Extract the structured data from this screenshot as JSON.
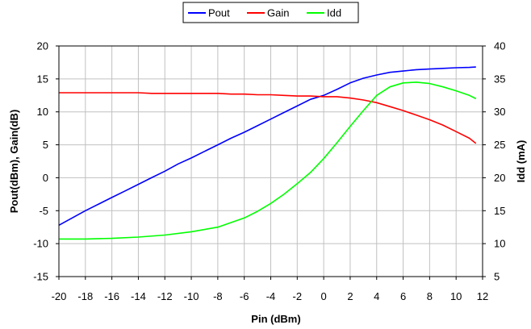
{
  "chart_data": {
    "type": "line",
    "title": "",
    "xlabel": "Pin (dBm)",
    "ylabel": "Pout(dBm), Gain(dB)",
    "y2label": "Idd (mA)",
    "xlim": [
      -20,
      12
    ],
    "ylim": [
      -15,
      20
    ],
    "y2lim": [
      5,
      40
    ],
    "xticks": [
      -20,
      -18,
      -16,
      -14,
      -12,
      -10,
      -8,
      -6,
      -4,
      -2,
      0,
      2,
      4,
      6,
      8,
      10,
      12
    ],
    "yticks": [
      -15,
      -10,
      -5,
      0,
      5,
      10,
      15,
      20
    ],
    "y2ticks": [
      5,
      10,
      15,
      20,
      25,
      30,
      35,
      40
    ],
    "grid": true,
    "legend_position": "top-center",
    "series": [
      {
        "name": "Pout",
        "axis": "left",
        "color": "#0000ff",
        "x": [
          -20,
          -19,
          -18,
          -17,
          -16,
          -15,
          -14,
          -13,
          -12,
          -11,
          -10,
          -9,
          -8,
          -7,
          -6,
          -5,
          -4,
          -3,
          -2,
          -1,
          0,
          1,
          2,
          3,
          4,
          5,
          6,
          7,
          8,
          9,
          10,
          11,
          11.5
        ],
        "y": [
          -7.2,
          -6.1,
          -5.0,
          -4.0,
          -3.0,
          -2.0,
          -1.0,
          0.0,
          1.0,
          2.1,
          3.0,
          4.0,
          5.0,
          6.0,
          6.9,
          7.9,
          8.9,
          9.9,
          10.9,
          11.9,
          12.5,
          13.4,
          14.4,
          15.1,
          15.6,
          16.0,
          16.2,
          16.4,
          16.5,
          16.6,
          16.7,
          16.75,
          16.8
        ]
      },
      {
        "name": "Gain",
        "axis": "left",
        "color": "#ff0000",
        "x": [
          -20,
          -18,
          -16,
          -14,
          -13,
          -12,
          -10,
          -8,
          -7,
          -6,
          -5,
          -4,
          -3,
          -2,
          -1,
          0,
          1,
          2,
          3,
          4,
          5,
          6,
          7,
          8,
          9,
          10,
          11,
          11.5
        ],
        "y": [
          12.9,
          12.9,
          12.9,
          12.9,
          12.8,
          12.8,
          12.8,
          12.8,
          12.7,
          12.7,
          12.6,
          12.6,
          12.5,
          12.4,
          12.4,
          12.3,
          12.3,
          12.1,
          11.8,
          11.4,
          10.8,
          10.2,
          9.5,
          8.8,
          8.0,
          7.0,
          6.0,
          5.2
        ]
      },
      {
        "name": "Idd",
        "axis": "right",
        "color": "#00ff00",
        "x": [
          -20,
          -18,
          -16,
          -14,
          -12,
          -10,
          -8,
          -6,
          -5,
          -4,
          -3,
          -2,
          -1,
          0,
          1,
          2,
          3,
          4,
          5,
          6,
          7,
          8,
          9,
          10,
          11,
          11.5
        ],
        "y": [
          10.7,
          10.7,
          10.8,
          11.0,
          11.3,
          11.8,
          12.5,
          13.9,
          14.9,
          16.1,
          17.5,
          19.1,
          20.8,
          22.9,
          25.3,
          27.8,
          30.2,
          32.5,
          33.8,
          34.4,
          34.5,
          34.3,
          33.8,
          33.2,
          32.5,
          32.0
        ]
      }
    ]
  }
}
